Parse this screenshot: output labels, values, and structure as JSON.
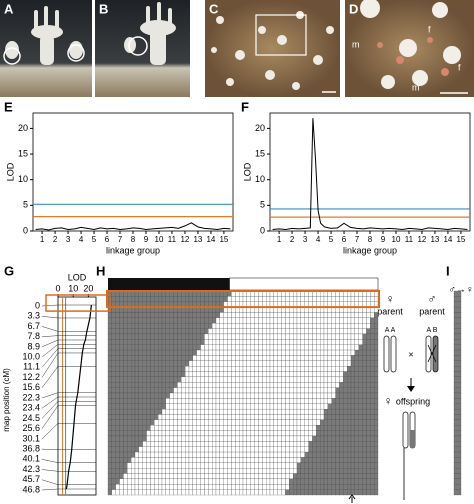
{
  "panel_labels": [
    "A",
    "B",
    "C",
    "D",
    "E",
    "F",
    "G",
    "H",
    "I"
  ],
  "photo_annotations": [
    "m",
    "f",
    "f",
    "m"
  ],
  "chart_data": [
    {
      "type": "line",
      "ylabel": "LOD",
      "xlabel": "linkage group",
      "xlim": [
        0.3,
        15.7
      ],
      "xticks": [
        1,
        2,
        3,
        4,
        5,
        6,
        7,
        8,
        9,
        10,
        11,
        12,
        13,
        14,
        15
      ],
      "ylim": [
        0,
        23
      ],
      "yticks": [
        0,
        5,
        10,
        15,
        20
      ],
      "thresholds": [
        {
          "value": 5.2,
          "color": "#3a8fb7"
        },
        {
          "value": 2.8,
          "color": "#e07b2a"
        }
      ],
      "series": [
        {
          "color": "#000000",
          "x": [
            0.5,
            1,
            1.5,
            2,
            2.5,
            3,
            3.5,
            4,
            4.5,
            5,
            5.5,
            6,
            6.5,
            7,
            7.5,
            8,
            8.5,
            9,
            9.5,
            10,
            10.5,
            11,
            11.5,
            12,
            12.5,
            13,
            13.5,
            14,
            14.5,
            15,
            15.5
          ],
          "values": [
            0.3,
            0.4,
            0.2,
            0.5,
            0.6,
            0.3,
            0.4,
            0.7,
            0.5,
            0.3,
            0.6,
            0.4,
            0.5,
            0.3,
            0.4,
            0.6,
            0.5,
            0.3,
            0.4,
            0.5,
            0.6,
            0.7,
            0.5,
            1.0,
            1.6,
            0.8,
            0.5,
            0.4,
            0.3,
            0.5,
            0.4
          ]
        }
      ]
    },
    {
      "type": "line",
      "ylabel": "LOD",
      "xlabel": "linkage group",
      "xlim": [
        0.3,
        15.7
      ],
      "xticks": [
        1,
        2,
        3,
        4,
        5,
        6,
        7,
        8,
        9,
        10,
        11,
        12,
        13,
        14,
        15
      ],
      "ylim": [
        0,
        23
      ],
      "yticks": [
        0,
        5,
        10,
        15,
        20
      ],
      "thresholds": [
        {
          "value": 4.3,
          "color": "#3a8fb7"
        },
        {
          "value": 2.7,
          "color": "#e07b2a"
        }
      ],
      "series": [
        {
          "color": "#000000",
          "x": [
            0.5,
            1,
            1.5,
            2,
            2.5,
            3,
            3.4,
            3.6,
            3.8,
            4.0,
            4.2,
            4.5,
            5,
            5.5,
            6,
            6.5,
            7,
            7.5,
            8,
            8.5,
            9,
            9.5,
            10,
            10.5,
            11,
            11.5,
            12,
            12.5,
            13,
            13.5,
            14,
            14.5,
            15,
            15.5
          ],
          "values": [
            0.3,
            0.4,
            0.3,
            0.5,
            0.4,
            0.5,
            0.6,
            22,
            14,
            4,
            1.5,
            0.8,
            0.5,
            0.6,
            1.5,
            0.7,
            0.5,
            0.4,
            0.6,
            0.5,
            0.4,
            0.5,
            0.4,
            0.3,
            0.5,
            0.4,
            0.3,
            0.6,
            0.5,
            0.4,
            0.3,
            0.5,
            0.4,
            0.3
          ]
        }
      ]
    },
    {
      "type": "map",
      "xlabel": "LOD",
      "ylabel": "map position (cM)",
      "xlim": [
        0,
        25
      ],
      "xticks": [
        0,
        10,
        20
      ],
      "thresholds": [
        {
          "value": 5.0,
          "color": "#3a8fb7"
        },
        {
          "value": 3.0,
          "color": "#e07b2a"
        }
      ],
      "categories": [
        "0",
        "3.3",
        "6.7",
        "7.8",
        "8.9",
        "10.0",
        "11.1",
        "12.2",
        "15.6",
        "22.3",
        "23.4",
        "24.5",
        "25.6",
        "30.1",
        "36.8",
        "40.1",
        "42.3",
        "45.7",
        "46.8"
      ],
      "values": [
        22,
        21,
        19,
        18.5,
        18,
        17,
        16.5,
        16,
        15,
        13,
        12.5,
        12,
        11.5,
        10.5,
        9,
        8,
        7,
        6,
        5.5
      ]
    }
  ],
  "genotype": {
    "male": "♂",
    "female": "♀"
  },
  "schematic": {
    "female_parent": "♀",
    "parent_1": "parent",
    "male_parent": "♂",
    "parent_2": "parent",
    "alleles_1": "A A",
    "alleles_2": "A B",
    "cross": "×",
    "offspring_symbol": "♀",
    "offspring": "offspring",
    "panel_i": "♂→♀"
  }
}
